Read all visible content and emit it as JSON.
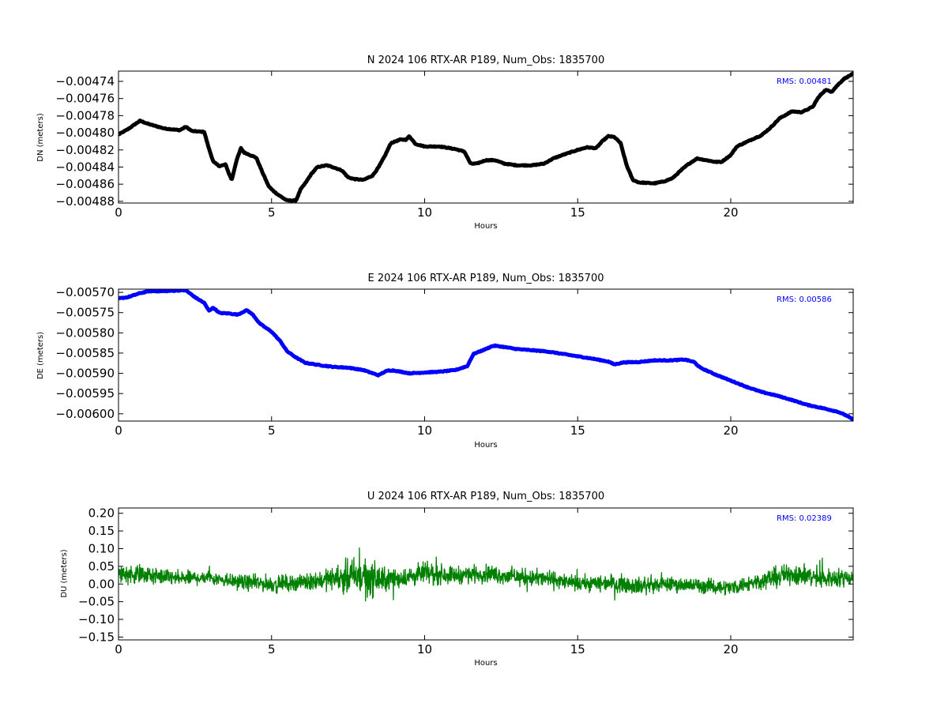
{
  "chart_data": [
    {
      "type": "line",
      "title": "N 2024 106 RTX-AR  P189, Num_Obs: 1835700",
      "xlabel": "Hours",
      "ylabel": "DN (meters)",
      "annotation": "RMS:  0.00481",
      "color": "#000000",
      "marker": true,
      "xlim": [
        0,
        24
      ],
      "ylim": [
        -0.004882,
        -0.004728
      ],
      "xticks": [
        0,
        5,
        10,
        15,
        20
      ],
      "xtick_labels": [
        "0",
        "5",
        "10",
        "15",
        "20"
      ],
      "yticks": [
        -0.00474,
        -0.00476,
        -0.00478,
        -0.0048,
        -0.00482,
        -0.00484,
        -0.00486,
        -0.00488
      ],
      "ytick_labels": [
        "−0.00474",
        "−0.00476",
        "−0.00478",
        "−0.00480",
        "−0.00482",
        "−0.00484",
        "−0.00486",
        "−0.00488"
      ],
      "x": [
        0,
        0.3,
        0.7,
        1.0,
        1.3,
        1.5,
        2.0,
        2.2,
        2.4,
        2.8,
        2.95,
        3.1,
        3.3,
        3.5,
        3.6,
        3.7,
        3.85,
        4.0,
        4.1,
        4.3,
        4.5,
        4.7,
        4.9,
        5.0,
        5.2,
        5.5,
        5.8,
        5.95,
        6.1,
        6.3,
        6.5,
        6.8,
        7.0,
        7.3,
        7.5,
        7.7,
        8.0,
        8.3,
        8.5,
        8.7,
        8.9,
        9.2,
        9.4,
        9.5,
        9.7,
        10.0,
        10.5,
        11.0,
        11.3,
        11.5,
        11.7,
        12.0,
        12.3,
        12.6,
        13.0,
        13.5,
        13.9,
        14.2,
        14.5,
        15.0,
        15.3,
        15.6,
        15.8,
        16.0,
        16.2,
        16.4,
        16.6,
        16.8,
        17.0,
        17.5,
        17.8,
        18.1,
        18.4,
        18.6,
        18.9,
        19.2,
        19.5,
        19.7,
        20.0,
        20.2,
        20.5,
        20.8,
        21.0,
        21.3,
        21.6,
        22.0,
        22.3,
        22.5,
        22.7,
        22.8,
        22.95,
        23.1,
        23.3,
        23.5,
        23.7,
        24.0
      ],
      "y": [
        -0.004802,
        -0.004796,
        -0.004786,
        -0.00479,
        -0.004793,
        -0.004795,
        -0.004797,
        -0.004793,
        -0.004798,
        -0.004799,
        -0.004818,
        -0.004834,
        -0.004839,
        -0.004837,
        -0.004847,
        -0.004855,
        -0.004833,
        -0.004818,
        -0.004823,
        -0.004826,
        -0.004829,
        -0.004846,
        -0.004862,
        -0.004866,
        -0.004872,
        -0.004879,
        -0.004879,
        -0.004866,
        -0.004859,
        -0.004848,
        -0.00484,
        -0.004838,
        -0.00484,
        -0.004844,
        -0.004852,
        -0.004854,
        -0.004855,
        -0.00485,
        -0.00484,
        -0.004827,
        -0.004812,
        -0.004808,
        -0.004808,
        -0.004804,
        -0.004813,
        -0.004816,
        -0.004816,
        -0.004819,
        -0.004822,
        -0.004836,
        -0.004836,
        -0.004832,
        -0.004832,
        -0.004836,
        -0.004838,
        -0.004838,
        -0.004836,
        -0.00483,
        -0.004826,
        -0.00482,
        -0.004817,
        -0.004818,
        -0.00481,
        -0.004804,
        -0.004805,
        -0.004812,
        -0.004838,
        -0.004855,
        -0.004858,
        -0.004859,
        -0.004857,
        -0.004853,
        -0.004843,
        -0.004837,
        -0.00483,
        -0.004832,
        -0.004834,
        -0.004834,
        -0.004826,
        -0.004816,
        -0.004811,
        -0.004806,
        -0.004803,
        -0.004794,
        -0.004783,
        -0.004775,
        -0.004776,
        -0.004773,
        -0.004769,
        -0.004762,
        -0.004755,
        -0.00475,
        -0.004752,
        -0.004744,
        -0.004737,
        -0.004731
      ]
    },
    {
      "type": "line",
      "title": "E 2024 106 RTX-AR  P189, Num_Obs: 1835700",
      "xlabel": "Hours",
      "ylabel": "DE (meters)",
      "annotation": "RMS:  0.00586",
      "color": "#0000ff",
      "marker": true,
      "xlim": [
        0,
        24
      ],
      "ylim": [
        -0.006018,
        -0.005692
      ],
      "xticks": [
        0,
        5,
        10,
        15,
        20
      ],
      "xtick_labels": [
        "0",
        "5",
        "10",
        "15",
        "20"
      ],
      "yticks": [
        -0.0057,
        -0.00575,
        -0.0058,
        -0.00585,
        -0.0059,
        -0.00595,
        -0.006
      ],
      "ytick_labels": [
        "−0.00570",
        "−0.00575",
        "−0.00580",
        "−0.00585",
        "−0.00590",
        "−0.00595",
        "−0.00600"
      ],
      "x": [
        0,
        0.3,
        0.7,
        1.0,
        1.5,
        2.0,
        2.2,
        2.5,
        2.8,
        2.95,
        3.1,
        3.3,
        3.6,
        3.9,
        4.1,
        4.2,
        4.4,
        4.6,
        4.8,
        5.0,
        5.3,
        5.5,
        5.8,
        6.1,
        6.5,
        7.0,
        7.5,
        8.0,
        8.5,
        8.6,
        8.8,
        9.0,
        9.5,
        10.0,
        10.5,
        11.0,
        11.4,
        11.5,
        11.6,
        11.8,
        12.0,
        12.2,
        12.3,
        12.6,
        13.0,
        13.5,
        14.0,
        14.5,
        15.0,
        15.5,
        16.0,
        16.2,
        16.5,
        17.0,
        17.5,
        18.0,
        18.5,
        18.8,
        19.0,
        19.5,
        20.0,
        20.5,
        21.0,
        21.5,
        22.0,
        22.5,
        23.0,
        23.5,
        23.8,
        24.0
      ],
      "y": [
        -0.005715,
        -0.005712,
        -0.005702,
        -0.005697,
        -0.005697,
        -0.005695,
        -0.005695,
        -0.005712,
        -0.005726,
        -0.005745,
        -0.005738,
        -0.005751,
        -0.005752,
        -0.005755,
        -0.005747,
        -0.005744,
        -0.005756,
        -0.005776,
        -0.005787,
        -0.005797,
        -0.005822,
        -0.005845,
        -0.005861,
        -0.005874,
        -0.005879,
        -0.005884,
        -0.005886,
        -0.005892,
        -0.005905,
        -0.0059,
        -0.005893,
        -0.005893,
        -0.0059,
        -0.005898,
        -0.005896,
        -0.005892,
        -0.005882,
        -0.005866,
        -0.005852,
        -0.005846,
        -0.00584,
        -0.005833,
        -0.005832,
        -0.005835,
        -0.00584,
        -0.005843,
        -0.005846,
        -0.005852,
        -0.005858,
        -0.005864,
        -0.005871,
        -0.005878,
        -0.005873,
        -0.005872,
        -0.005868,
        -0.005868,
        -0.005866,
        -0.005872,
        -0.005886,
        -0.005903,
        -0.005918,
        -0.005933,
        -0.005946,
        -0.005955,
        -0.005966,
        -0.005978,
        -0.005986,
        -0.005995,
        -0.006005,
        -0.006015
      ]
    },
    {
      "type": "line",
      "title": "U 2024 106 RTX-AR  P189, Num_Obs: 1835700",
      "xlabel": "Hours",
      "ylabel": "DU (meters)",
      "annotation": "RMS:  0.02389",
      "color": "#008000",
      "marker": false,
      "noisy": true,
      "xlim": [
        0,
        24
      ],
      "ylim": [
        -0.158,
        0.215
      ],
      "xticks": [
        0,
        5,
        10,
        15,
        20
      ],
      "xtick_labels": [
        "0",
        "5",
        "10",
        "15",
        "20"
      ],
      "yticks": [
        0.2,
        0.15,
        0.1,
        0.05,
        0.0,
        -0.05,
        -0.1,
        -0.15
      ],
      "ytick_labels": [
        "0.20",
        "0.15",
        "0.10",
        "0.05",
        "0.00",
        "−0.05",
        "−0.10",
        "−0.15"
      ],
      "x": [
        0,
        1,
        2,
        3,
        4,
        5,
        6,
        7,
        7.5,
        8,
        8.5,
        9,
        9.5,
        10,
        11,
        12,
        13,
        14,
        15,
        16,
        17,
        18,
        19,
        20,
        21,
        22,
        23,
        24
      ],
      "mean": [
        0.03,
        0.025,
        0.015,
        0.02,
        0.005,
        0.0,
        0.005,
        0.015,
        0.02,
        0.02,
        0.01,
        0.015,
        0.02,
        0.03,
        0.025,
        0.03,
        0.02,
        0.015,
        0.0,
        0.005,
        -0.005,
        0.0,
        -0.005,
        -0.01,
        0.01,
        0.03,
        0.015,
        0.02
      ],
      "amplitude": [
        0.04,
        0.035,
        0.03,
        0.03,
        0.03,
        0.035,
        0.03,
        0.045,
        0.07,
        0.09,
        0.06,
        0.04,
        0.04,
        0.045,
        0.035,
        0.035,
        0.035,
        0.035,
        0.03,
        0.035,
        0.035,
        0.03,
        0.03,
        0.03,
        0.035,
        0.045,
        0.04,
        0.035
      ]
    }
  ]
}
